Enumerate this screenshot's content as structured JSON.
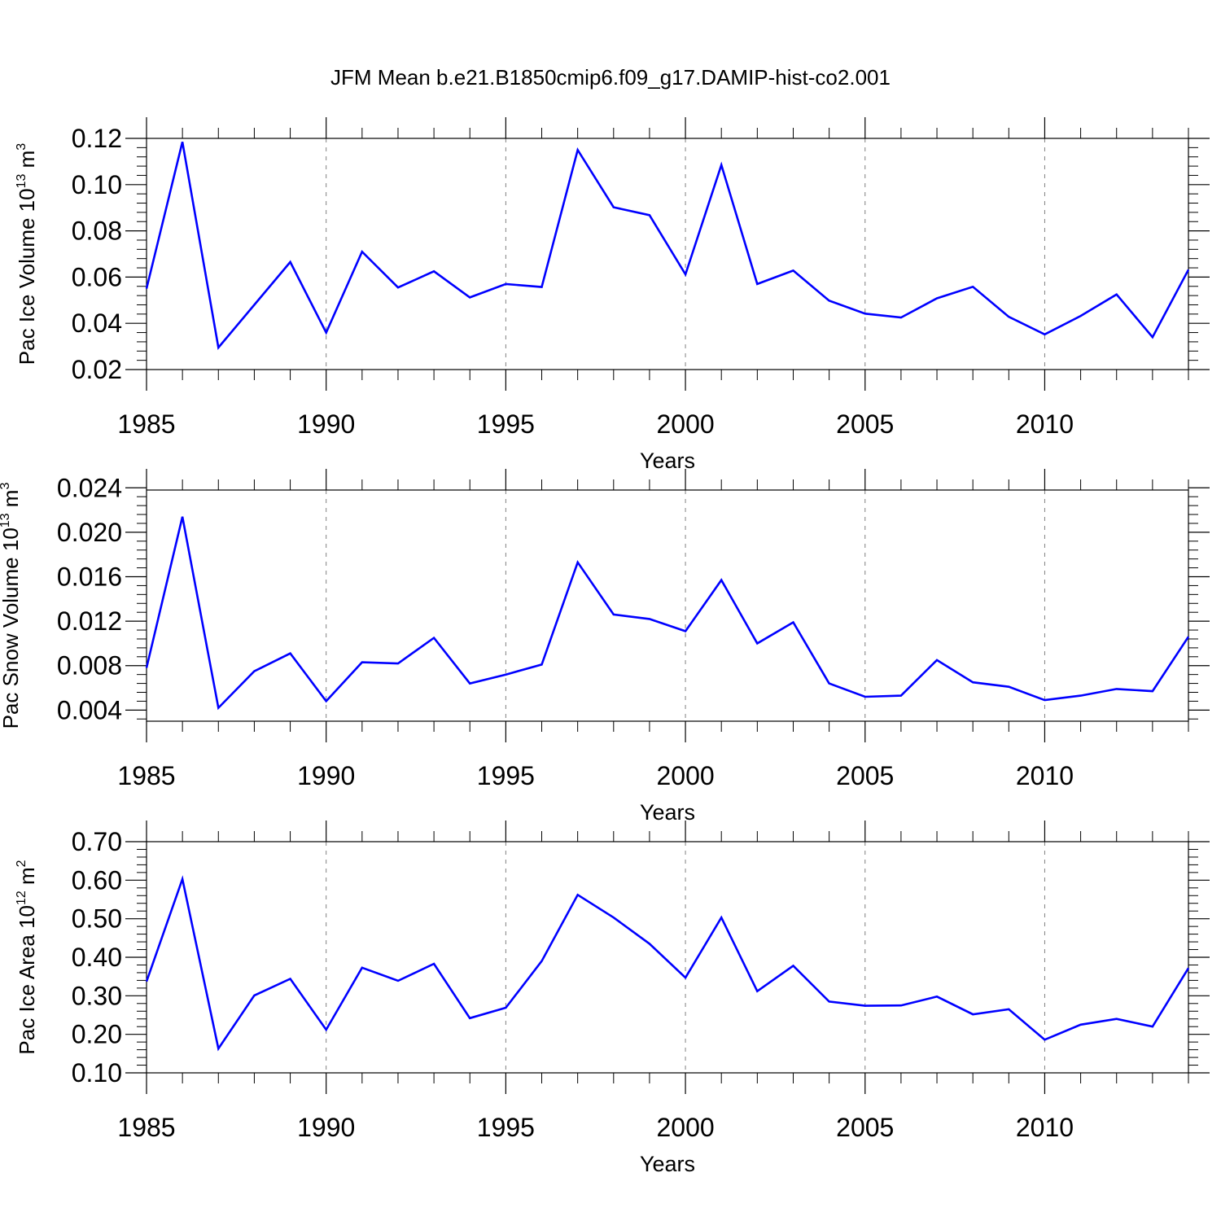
{
  "title": "JFM Mean b.e21.B1850cmip6.f09_g17.DAMIP-hist-co2.001",
  "colors": {
    "line": "#0000ff",
    "axis": "#000000",
    "grid": "#808080"
  },
  "chart_data": [
    {
      "type": "line",
      "ylabel": "Pac Ice Volume 10",
      "ylabel_exp": "13",
      "ylabel_unit": " m",
      "ylabel_unit_exp": "3",
      "xlabel": "Years",
      "xlim": [
        1985,
        2014
      ],
      "ylim": [
        0.02,
        0.12
      ],
      "yticks": [
        "0.02",
        "0.04",
        "0.06",
        "0.08",
        "0.10",
        "0.12"
      ],
      "yticks_num": [
        0.02,
        0.04,
        0.06,
        0.08,
        0.1,
        0.12
      ],
      "xticks": [
        "1985",
        "1990",
        "1995",
        "2000",
        "2005",
        "2010"
      ],
      "xticks_num": [
        1985,
        1990,
        1995,
        2000,
        2005,
        2010
      ],
      "x": [
        1985,
        1986,
        1987,
        1988,
        1989,
        1990,
        1991,
        1992,
        1993,
        1994,
        1995,
        1996,
        1997,
        1998,
        1999,
        2000,
        2001,
        2002,
        2003,
        2004,
        2005,
        2006,
        2007,
        2008,
        2009,
        2010,
        2011,
        2012,
        2013,
        2014
      ],
      "values": [
        0.055,
        0.1185,
        0.0295,
        0.048,
        0.0665,
        0.036,
        0.071,
        0.0555,
        0.0625,
        0.0512,
        0.057,
        0.0557,
        0.115,
        0.0902,
        0.0868,
        0.0612,
        0.1085,
        0.057,
        0.0628,
        0.0498,
        0.0442,
        0.0425,
        0.0508,
        0.0558,
        0.0428,
        0.0352,
        0.0432,
        0.0525,
        0.034,
        0.0632
      ]
    },
    {
      "type": "line",
      "ylabel": "Pac Snow Volume 10",
      "ylabel_exp": "13",
      "ylabel_unit": " m",
      "ylabel_unit_exp": "3",
      "xlabel": "Years",
      "xlim": [
        1985,
        2014
      ],
      "ylim": [
        0.003,
        0.0238
      ],
      "yticks": [
        "0.004",
        "0.008",
        "0.012",
        "0.016",
        "0.020",
        "0.024"
      ],
      "yticks_num": [
        0.004,
        0.008,
        0.012,
        0.016,
        0.02,
        0.024
      ],
      "xticks": [
        "1985",
        "1990",
        "1995",
        "2000",
        "2005",
        "2010"
      ],
      "xticks_num": [
        1985,
        1990,
        1995,
        2000,
        2005,
        2010
      ],
      "x": [
        1985,
        1986,
        1987,
        1988,
        1989,
        1990,
        1991,
        1992,
        1993,
        1994,
        1995,
        1996,
        1997,
        1998,
        1999,
        2000,
        2001,
        2002,
        2003,
        2004,
        2005,
        2006,
        2007,
        2008,
        2009,
        2010,
        2011,
        2012,
        2013,
        2014
      ],
      "values": [
        0.0078,
        0.0214,
        0.0042,
        0.0075,
        0.0091,
        0.0048,
        0.0083,
        0.0082,
        0.0105,
        0.0064,
        0.0072,
        0.0081,
        0.0173,
        0.0126,
        0.0122,
        0.0111,
        0.0157,
        0.01,
        0.0119,
        0.0064,
        0.0052,
        0.0053,
        0.0085,
        0.0065,
        0.0061,
        0.0049,
        0.0053,
        0.0059,
        0.0057,
        0.0106
      ]
    },
    {
      "type": "line",
      "ylabel": "Pac Ice Area 10",
      "ylabel_exp": "12",
      "ylabel_unit": " m",
      "ylabel_unit_exp": "2",
      "xlabel": "Years",
      "xlim": [
        1985,
        2014
      ],
      "ylim": [
        0.1,
        0.7
      ],
      "yticks": [
        "0.10",
        "0.20",
        "0.30",
        "0.40",
        "0.50",
        "0.60",
        "0.70"
      ],
      "yticks_num": [
        0.1,
        0.2,
        0.3,
        0.4,
        0.5,
        0.6,
        0.7
      ],
      "xticks": [
        "1985",
        "1990",
        "1995",
        "2000",
        "2005",
        "2010"
      ],
      "xticks_num": [
        1985,
        1990,
        1995,
        2000,
        2005,
        2010
      ],
      "x": [
        1985,
        1986,
        1987,
        1988,
        1989,
        1990,
        1991,
        1992,
        1993,
        1994,
        1995,
        1996,
        1997,
        1998,
        1999,
        2000,
        2001,
        2002,
        2003,
        2004,
        2005,
        2006,
        2007,
        2008,
        2009,
        2010,
        2011,
        2012,
        2013,
        2014
      ],
      "values": [
        0.337,
        0.603,
        0.163,
        0.301,
        0.344,
        0.212,
        0.373,
        0.339,
        0.383,
        0.242,
        0.269,
        0.39,
        0.562,
        0.503,
        0.435,
        0.347,
        0.503,
        0.312,
        0.378,
        0.285,
        0.274,
        0.275,
        0.298,
        0.252,
        0.265,
        0.186,
        0.225,
        0.24,
        0.22,
        0.372
      ]
    }
  ]
}
